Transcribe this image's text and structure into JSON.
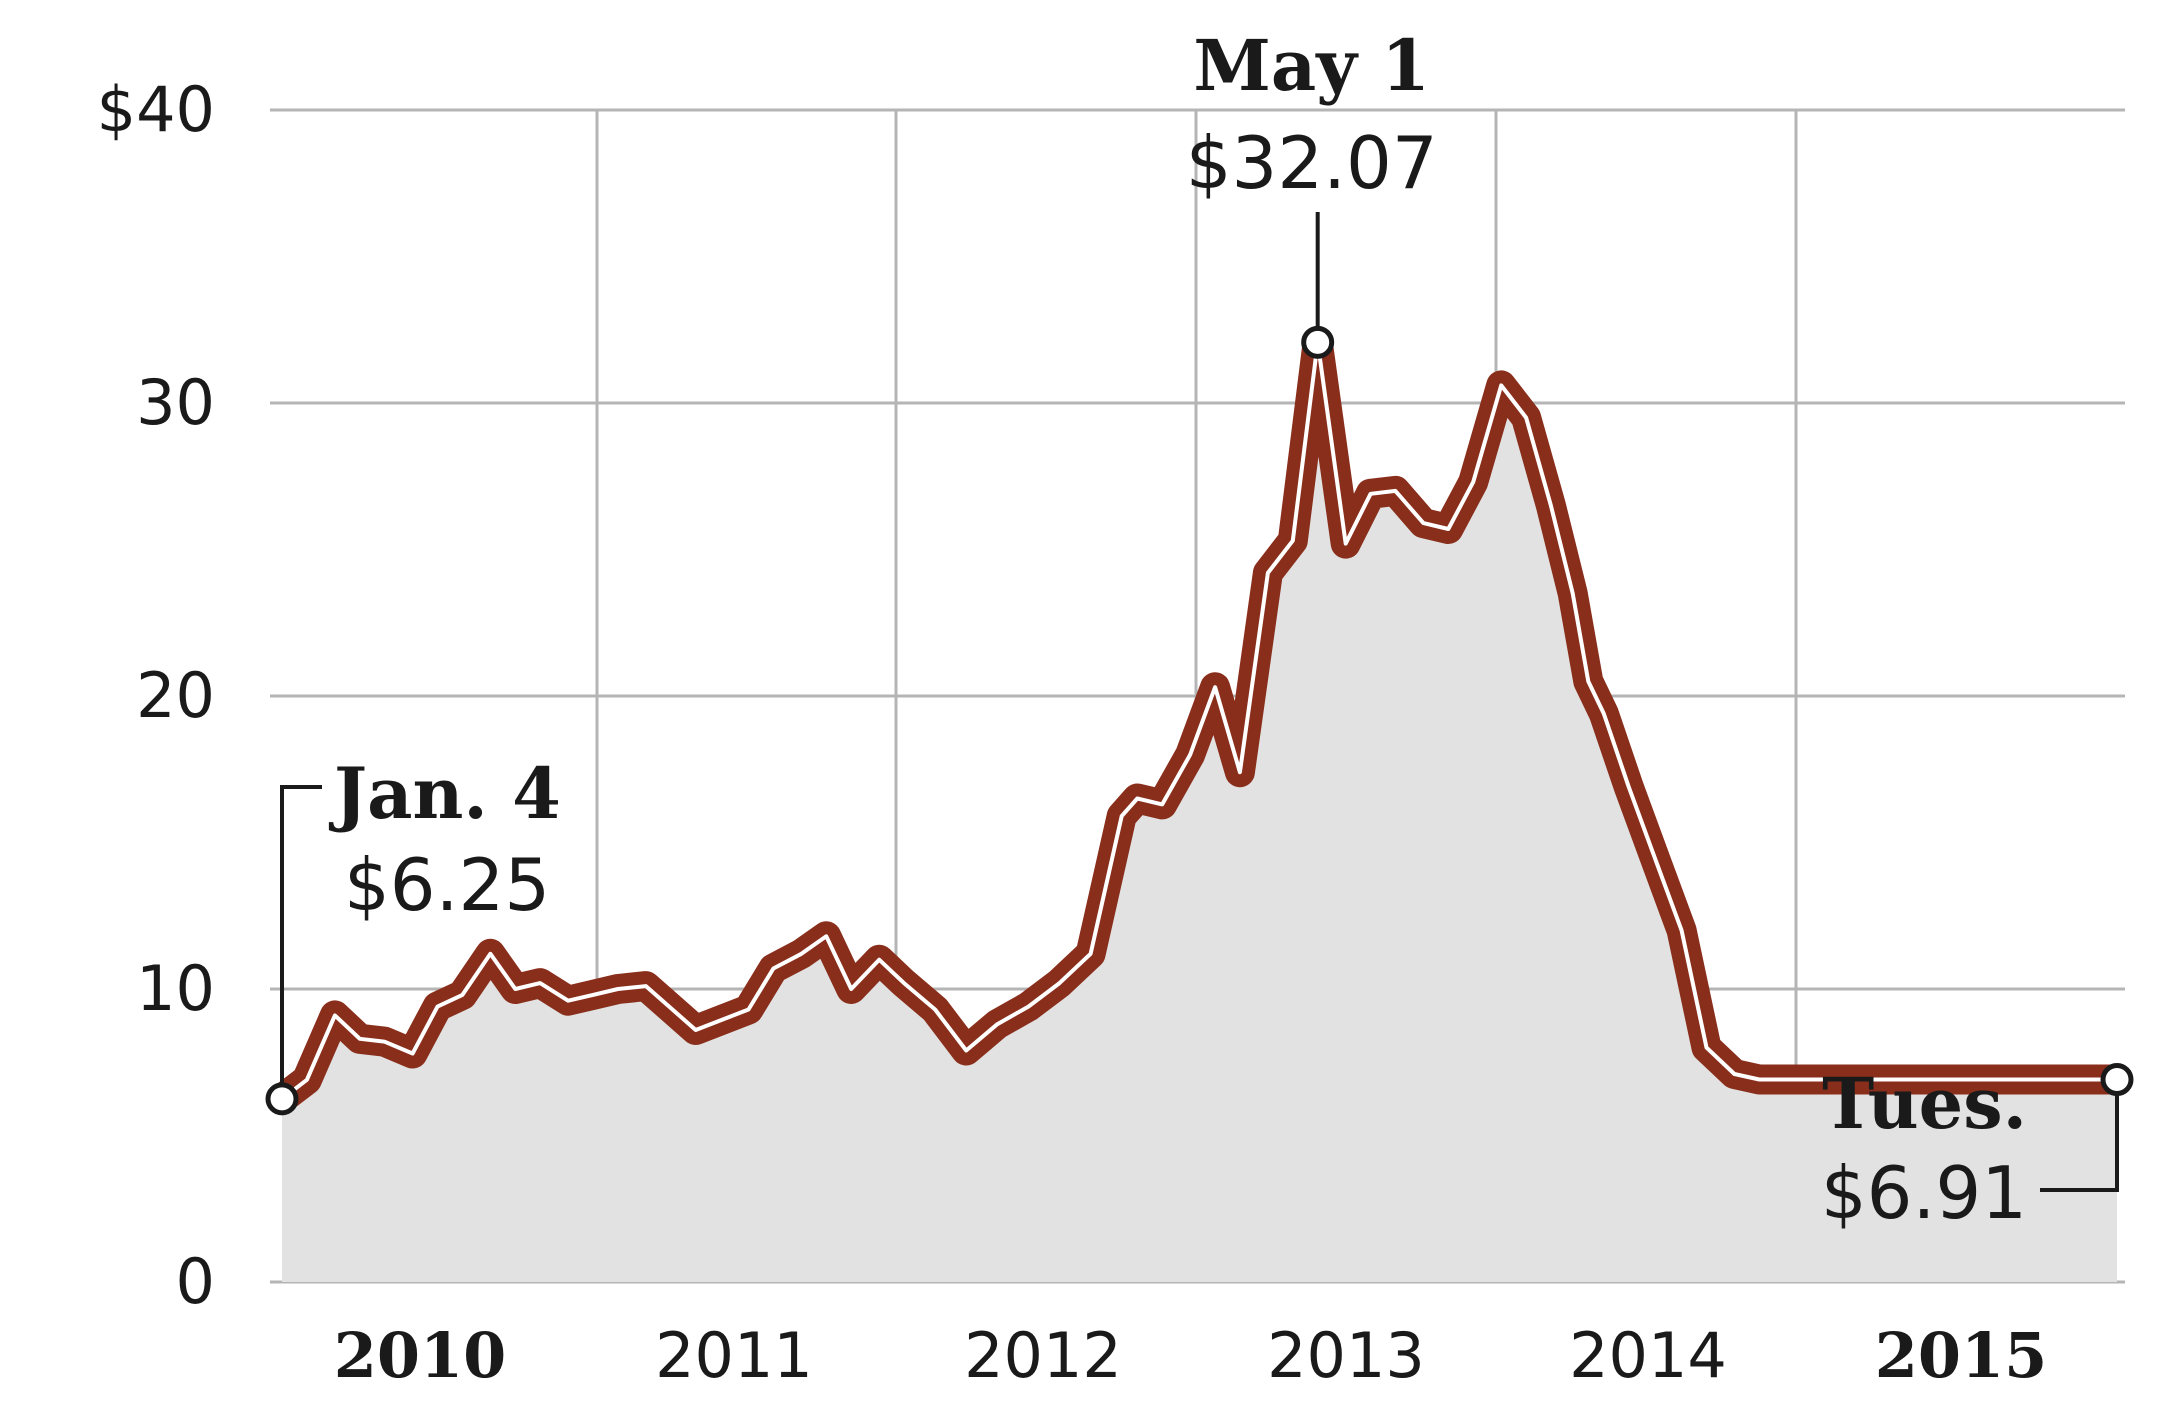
{
  "chart_data": {
    "type": "area",
    "yticks": [
      {
        "label": "$40",
        "value": 40
      },
      {
        "label": "30",
        "value": 30
      },
      {
        "label": "20",
        "value": 20
      },
      {
        "label": "10",
        "value": 10
      },
      {
        "label": "0",
        "value": 0
      }
    ],
    "xticks": [
      {
        "label": "2010",
        "bold": true
      },
      {
        "label": "2011",
        "bold": false
      },
      {
        "label": "2012",
        "bold": false
      },
      {
        "label": "2013",
        "bold": false
      },
      {
        "label": "2014",
        "bold": false
      },
      {
        "label": "2015",
        "bold": true
      }
    ],
    "ylim": [
      0,
      40
    ],
    "xlim": [
      2010.0,
      2015.9
    ],
    "grid": true,
    "line_color": "#8a2e1c",
    "fill_color": "#e1e2e1",
    "x": [
      2010.0,
      2010.08,
      2010.17,
      2010.25,
      2010.33,
      2010.42,
      2010.5,
      2010.58,
      2010.67,
      2010.75,
      2010.83,
      2010.92,
      2011.0,
      2011.08,
      2011.17,
      2011.33,
      2011.5,
      2011.58,
      2011.67,
      2011.75,
      2011.83,
      2011.92,
      2012.0,
      2012.1,
      2012.2,
      2012.3,
      2012.4,
      2012.5,
      2012.6,
      2012.7,
      2012.75,
      2012.83,
      2012.92,
      2013.0,
      2013.08,
      2013.17,
      2013.25,
      2013.33,
      2013.42,
      2013.5,
      2013.58,
      2013.67,
      2013.75,
      2013.83,
      2013.92,
      2014.0,
      2014.08,
      2014.15,
      2014.2,
      2014.25,
      2014.33,
      2014.42,
      2014.5,
      2014.58,
      2014.67,
      2014.75,
      2014.83,
      2014.92,
      2015.0,
      2015.08,
      2015.17,
      2015.25,
      2015.33,
      2015.42,
      2015.5,
      2015.58,
      2015.67,
      2015.75,
      2015.83,
      2015.9
    ],
    "values": [
      6.25,
      6.9,
      9.1,
      8.3,
      8.2,
      7.8,
      9.4,
      9.8,
      11.2,
      10.0,
      10.2,
      9.6,
      9.8,
      10.0,
      10.1,
      8.6,
      9.3,
      10.7,
      11.2,
      11.8,
      10.0,
      11.0,
      10.2,
      9.3,
      7.9,
      8.8,
      9.4,
      10.2,
      11.2,
      15.9,
      16.5,
      16.3,
      18.0,
      20.3,
      17.4,
      24.2,
      25.3,
      32.07,
      25.2,
      26.9,
      27.0,
      25.9,
      25.7,
      27.3,
      30.6,
      29.5,
      26.5,
      23.5,
      20.5,
      19.4,
      16.9,
      14.3,
      12.0,
      8.0,
      7.1,
      6.91,
      6.91,
      6.91,
      6.91,
      6.91,
      6.91,
      6.91,
      6.91,
      6.91,
      6.91,
      6.91,
      6.91,
      6.91,
      6.91,
      6.91
    ],
    "annotations": [
      {
        "date": "Jan. 4",
        "value": "$6.25",
        "x": 2010.0,
        "y": 6.25
      },
      {
        "date": "May 1",
        "value": "$32.07",
        "x": 2013.33,
        "y": 32.07
      },
      {
        "date": "Tues.",
        "value": "$6.91",
        "x": 2015.9,
        "y": 6.91
      }
    ]
  }
}
